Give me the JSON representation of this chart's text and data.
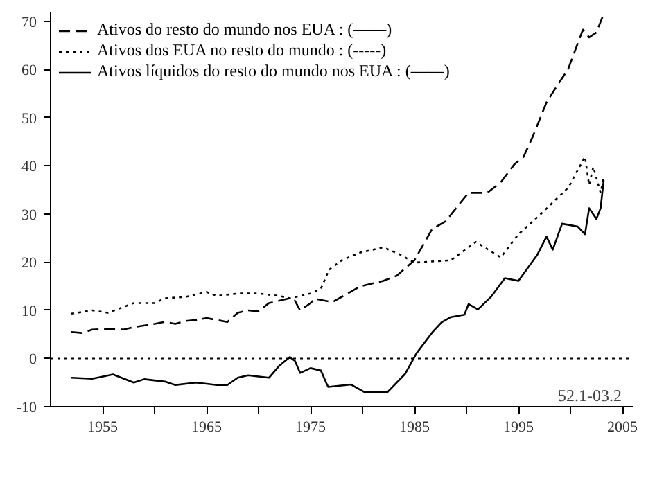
{
  "chart_data": {
    "type": "line",
    "xlim": [
      1950,
      2006
    ],
    "ylim": [
      -10,
      72
    ],
    "xticks": [
      1955,
      {
        "value": 1960,
        "label": null
      },
      1965,
      {
        "value": 1970,
        "label": null
      },
      1975,
      {
        "value": 1980,
        "label": null
      },
      1985,
      {
        "value": 1990,
        "label": null
      },
      1995,
      {
        "value": 2000,
        "label": null
      },
      2005
    ],
    "yticks": [
      -10,
      0,
      10,
      20,
      30,
      40,
      50,
      60,
      70
    ],
    "grid": false,
    "legend": "top left",
    "series": [
      {
        "name": "Ativos do resto do mundo nos EUA : (——)",
        "color": "#000000",
        "line_style": "dashed",
        "x": [
          1952,
          1953,
          1954,
          1956,
          1957,
          1958,
          1960,
          1961,
          1962,
          1963,
          1964,
          1965,
          1966,
          1967,
          1968,
          1969,
          1970,
          1971,
          1972,
          1973,
          1973.5,
          1974,
          1975,
          1975.4,
          1977.1,
          1979.8,
          1982,
          1983.3,
          1985,
          1986.7,
          1988,
          1989.4,
          1990.2,
          1992,
          1993.3,
          1994.6,
          1995.5,
          1996.4,
          1997.7,
          1998.5,
          1999.8,
          2001.2,
          2001.8,
          2002.5,
          2003.1
        ],
        "values": [
          5.5,
          5.3,
          6,
          6.2,
          6,
          6.5,
          7.2,
          7.6,
          7.2,
          7.8,
          8,
          8.4,
          8,
          7.6,
          9.5,
          10,
          9.8,
          11.5,
          12,
          12.5,
          12,
          10,
          11.5,
          12.4,
          11.7,
          15,
          16.1,
          17.2,
          20.4,
          26.9,
          28.5,
          32.3,
          34.4,
          34.4,
          36.6,
          40.3,
          41.9,
          46.2,
          53.2,
          55.9,
          60.2,
          68.3,
          66.7,
          67.7,
          71
        ]
      },
      {
        "name": "Ativos dos EUA no resto do mundo : (-----)",
        "color": "#000000",
        "line_style": "dotted",
        "x": [
          1952,
          1954,
          1955.5,
          1958,
          1960,
          1961,
          1963,
          1965,
          1966,
          1968,
          1970,
          1972,
          1973,
          1975,
          1976,
          1976.6,
          1976.7,
          1978,
          1979.8,
          1982,
          1983.7,
          1985,
          1988.5,
          1990.9,
          1993.3,
          1995,
          1997.2,
          1999.8,
          2001.4,
          2001.8,
          2002.2,
          2002.9,
          2003.2
        ],
        "values": [
          9.3,
          10,
          9.5,
          11.5,
          11.5,
          12.5,
          12.8,
          13.8,
          13,
          13.5,
          13.5,
          13,
          12.5,
          13.5,
          14.5,
          17.5,
          18.3,
          20.4,
          22,
          23.1,
          21.5,
          19.9,
          20.4,
          24.2,
          21,
          25.8,
          30.1,
          35.5,
          41.9,
          36,
          39.8,
          34.4,
          37.6
        ]
      },
      {
        "name": "Ativos líquidos do resto do mundo nos EUA : (——)",
        "color": "#000000",
        "line_style": "solid",
        "x": [
          1952,
          1954,
          1956,
          1958,
          1959,
          1961,
          1962,
          1964,
          1966,
          1967,
          1968,
          1969,
          1971,
          1972,
          1973,
          1973.5,
          1974,
          1975,
          1976,
          1976.5,
          1976.7,
          1978.9,
          1980.2,
          1982.4,
          1984.1,
          1985.2,
          1986.7,
          1987.6,
          1988.5,
          1989.8,
          1990.2,
          1991.1,
          1992.4,
          1993.7,
          1995,
          1996.8,
          1997.7,
          1998.3,
          1999.2,
          2000.7,
          2001.4,
          2001.8,
          2002.5,
          2002.9,
          2003.2
        ],
        "values": [
          -4,
          -4.2,
          -3.3,
          -5,
          -4.3,
          -4.8,
          -5.5,
          -5,
          -5.5,
          -5.5,
          -4,
          -3.5,
          -4,
          -1.5,
          0.3,
          -0.5,
          -3,
          -2,
          -2.5,
          -5,
          -5.9,
          -5.4,
          -7,
          -7,
          -3.2,
          1.1,
          5.4,
          7.5,
          8.6,
          9.1,
          11.3,
          10.2,
          12.9,
          16.7,
          16.1,
          21.5,
          25.3,
          22.6,
          28,
          27.4,
          25.8,
          31.2,
          29,
          31.2,
          37
        ]
      }
    ],
    "ref_lines": [
      {
        "axis": "y",
        "value": 0,
        "color": "#000000",
        "line_style": "dotted"
      }
    ],
    "annotations": [
      "52.1-03.2"
    ]
  }
}
